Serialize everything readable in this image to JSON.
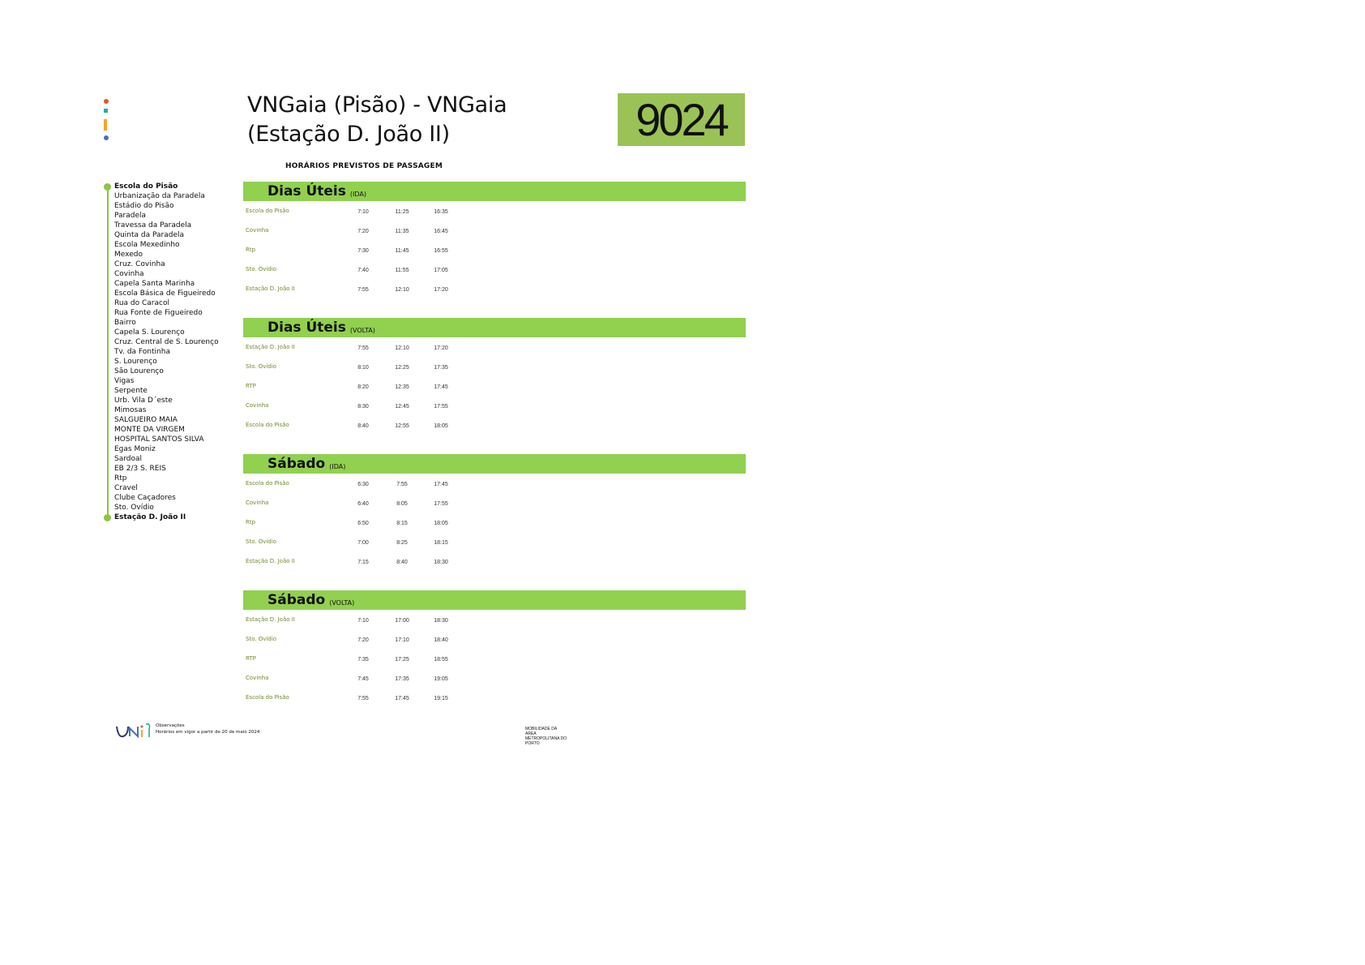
{
  "header": {
    "title": "VNGaia (Pisão) - VNGaia (Estação D. João II)",
    "route_number": "9024",
    "subtitle": "HORÁRIOS PREVISTOS DE PASSAGEM",
    "logo_colors": [
      "#e8532b",
      "#1bb39a",
      "#f5a623",
      "#4a6fb5"
    ]
  },
  "stops": [
    "Escola do Pisão",
    "Urbanização da Paradela",
    "Estádio do Pisão",
    "Paradela",
    "Travessa da Paradela",
    "Quinta da Paradela",
    "Escola Mexedinho",
    "Mexedo",
    "Cruz. Covinha",
    "Covinha",
    "Capela Santa Marinha",
    "Escola Básica de Figueiredo",
    "Rua do Caracol",
    "Rua Fonte de Figueiredo",
    "Bairro",
    "Capela S. Lourenço",
    "Cruz. Central de S. Lourenço",
    "Tv. da Fontinha",
    "S. Lourenço",
    "São Lourenço",
    "Vigas",
    "Serpente",
    "Urb. Vila D´este",
    "Mimosas",
    "SALGUEIRO MAIA",
    "MONTE DA VIRGEM",
    "HOSPITAL SANTOS SILVA",
    "Egas Moniz",
    "Sardoal",
    "EB 2/3 S. REIS",
    "Rtp",
    "Cravel",
    "Clube Caçadores",
    "Sto. Ovídio",
    "Estação D. João II"
  ],
  "sections": [
    {
      "name": "Dias Úteis",
      "direction": "(IDA)",
      "rows": [
        {
          "stop": "Escola do Pisão",
          "times": [
            "7:10",
            "11:25",
            "16:35"
          ]
        },
        {
          "stop": "Covinha",
          "times": [
            "7:20",
            "11:35",
            "16:45"
          ]
        },
        {
          "stop": "Rtp",
          "times": [
            "7:30",
            "11:45",
            "16:55"
          ]
        },
        {
          "stop": "Sto. Ovídio",
          "times": [
            "7:40",
            "11:55",
            "17:05"
          ]
        },
        {
          "stop": "Estação D. João II",
          "times": [
            "7:55",
            "12:10",
            "17:20"
          ]
        }
      ]
    },
    {
      "name": "Dias Úteis",
      "direction": "(VOLTA)",
      "rows": [
        {
          "stop": "Estação D. João II",
          "times": [
            "7:55",
            "12:10",
            "17:20"
          ]
        },
        {
          "stop": "Sto. Ovídio",
          "times": [
            "8:10",
            "12:25",
            "17:35"
          ]
        },
        {
          "stop": "RTP",
          "times": [
            "8:20",
            "12:35",
            "17:45"
          ]
        },
        {
          "stop": "Covinha",
          "times": [
            "8:30",
            "12:45",
            "17:55"
          ]
        },
        {
          "stop": "Escola do Pisão",
          "times": [
            "8:40",
            "12:55",
            "18:05"
          ]
        }
      ]
    },
    {
      "name": "Sábado",
      "direction": "(IDA)",
      "rows": [
        {
          "stop": "Escola do Pisão",
          "times": [
            "6:30",
            "7:55",
            "17:45"
          ]
        },
        {
          "stop": "Covinha",
          "times": [
            "6:40",
            "8:05",
            "17:55"
          ]
        },
        {
          "stop": "Rtp",
          "times": [
            "6:50",
            "8:15",
            "18:05"
          ]
        },
        {
          "stop": "Sto. Ovídio",
          "times": [
            "7:00",
            "8:25",
            "18:15"
          ]
        },
        {
          "stop": "Estação D. João II",
          "times": [
            "7:15",
            "8:40",
            "18:30"
          ]
        }
      ]
    },
    {
      "name": "Sábado",
      "direction": "(VOLTA)",
      "rows": [
        {
          "stop": "Estação D. João II",
          "times": [
            "7:10",
            "17:00",
            "18:30"
          ]
        },
        {
          "stop": "Sto. Ovídio",
          "times": [
            "7:20",
            "17:10",
            "18:40"
          ]
        },
        {
          "stop": "RTP",
          "times": [
            "7:35",
            "17:25",
            "18:55"
          ]
        },
        {
          "stop": "Covinha",
          "times": [
            "7:45",
            "17:35",
            "19:05"
          ]
        },
        {
          "stop": "Escola do Pisão",
          "times": [
            "7:55",
            "17:45",
            "19:15"
          ]
        }
      ]
    }
  ],
  "footer": {
    "logo_text": "UNIR",
    "observations_label": "Observações",
    "observations_text": "Horários em vigor a partir de 20 de maio 2024",
    "authority": "MOBILIDADE DA ÁREA METROPOLITANA DO PORTO"
  },
  "colors": {
    "accent": "#92d050",
    "badge": "#9bc256",
    "stop_label": "#6f8a2e"
  }
}
